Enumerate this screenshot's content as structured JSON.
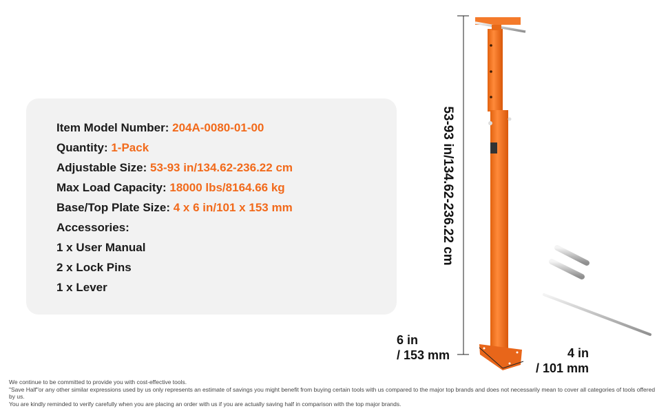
{
  "specs": [
    {
      "label": "Item Model Number: ",
      "value": "204A-0080-01-00"
    },
    {
      "label": "Quantity: ",
      "value": "1-Pack"
    },
    {
      "label": "Adjustable Size: ",
      "value": "53-93 in/134.62-236.22 cm"
    },
    {
      "label": "Max Load Capacity: ",
      "value": "18000 lbs/8164.66 kg"
    },
    {
      "label": "Base/Top Plate Size: ",
      "value": "4 x 6 in/101 x 153 mm"
    }
  ],
  "accessories_label": "Accessories:",
  "accessories": [
    "1 x User Manual",
    "2 x Lock Pins",
    "1 x Lever"
  ],
  "dimensions": {
    "height": "53-93 in/134.62-236.22 cm",
    "plate_length_line1": "6 in",
    "plate_length_line2": "/ 153 mm",
    "plate_width_line1": "4 in",
    "plate_width_line2": "/ 101 mm"
  },
  "footer": [
    "We continue to be committed to provide you with cost-effective tools.",
    "\"Save Half\"or any other similar expressions used by us only represents an estimate of savings you might benefit from buying certain tools with us compared to the major top brands and does not necessarily mean to cover all categories of tools offered by us.",
    "You are kindly reminded to verify carefully when you are placing an order with us if you are actually saving half in comparison with the top major brands."
  ],
  "colors": {
    "accent": "#f26a1b",
    "panel": "#f2f2f2",
    "text": "#1a1a1a"
  }
}
